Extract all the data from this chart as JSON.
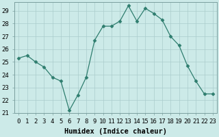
{
  "x": [
    0,
    1,
    2,
    3,
    4,
    5,
    6,
    7,
    8,
    9,
    10,
    11,
    12,
    13,
    14,
    15,
    16,
    17,
    18,
    19,
    20,
    21,
    22,
    23
  ],
  "y": [
    25.3,
    25.5,
    25.0,
    24.6,
    23.8,
    23.5,
    21.2,
    22.4,
    23.8,
    26.7,
    27.8,
    27.8,
    28.2,
    29.4,
    28.2,
    29.2,
    28.8,
    28.3,
    27.0,
    26.3,
    24.7,
    23.5,
    22.5,
    22.5
  ],
  "xlabel": "Humidex (Indice chaleur)",
  "ylim": [
    21,
    29.7
  ],
  "xlim": [
    -0.5,
    23.5
  ],
  "yticks": [
    21,
    22,
    23,
    24,
    25,
    26,
    27,
    28,
    29
  ],
  "xticks": [
    0,
    1,
    2,
    3,
    4,
    5,
    6,
    7,
    8,
    9,
    10,
    11,
    12,
    13,
    14,
    15,
    16,
    17,
    18,
    19,
    20,
    21,
    22,
    23
  ],
  "xtick_labels": [
    "0",
    "1",
    "2",
    "3",
    "4",
    "5",
    "6",
    "7",
    "8",
    "9",
    "10",
    "11",
    "12",
    "13",
    "14",
    "15",
    "16",
    "17",
    "18",
    "19",
    "20",
    "21",
    "22",
    "23"
  ],
  "line_color": "#2e7d6e",
  "marker": "D",
  "marker_size": 2.5,
  "bg_color": "#cceae8",
  "grid_color": "#aacccc",
  "tick_fontsize": 6.5,
  "xlabel_fontsize": 7.5
}
